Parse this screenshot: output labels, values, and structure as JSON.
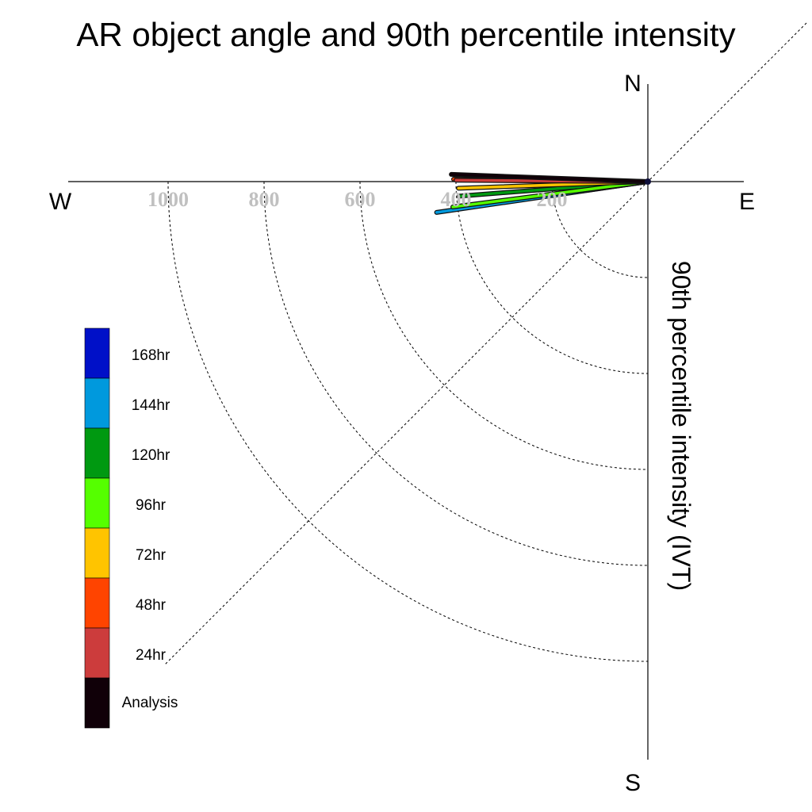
{
  "chart_data": {
    "type": "polar-vector",
    "title": "AR object angle and 90th percentile intensity",
    "ylabel": "90th percentile intensity (IVT)",
    "compass": {
      "north": "N",
      "south": "S",
      "east": "E",
      "west": "W"
    },
    "radial_ticks": [
      "200",
      "400",
      "600",
      "800",
      "1000"
    ],
    "radial_tick_values": [
      200,
      400,
      600,
      800,
      1000
    ],
    "rlim": [
      0,
      1200
    ],
    "grid": true,
    "legend_position": "left",
    "series": [
      {
        "name": "168hr",
        "color": "#0010c8",
        "magnitude": 405,
        "angle_deg": -8.1
      },
      {
        "name": "144hr",
        "color": "#0099dd",
        "magnitude": 445,
        "angle_deg": -8.3
      },
      {
        "name": "120hr",
        "color": "#009911",
        "magnitude": 395,
        "angle_deg": -4.4
      },
      {
        "name": "96hr",
        "color": "#55ff00",
        "magnitude": 410,
        "angle_deg": -7.4
      },
      {
        "name": "72hr",
        "color": "#ffc400",
        "magnitude": 395,
        "angle_deg": -2.0
      },
      {
        "name": "48hr",
        "color": "#ff4400",
        "magnitude": 405,
        "angle_deg": 0.7
      },
      {
        "name": "24hr",
        "color": "#cc3c3c",
        "magnitude": 400,
        "angle_deg": 0.4
      },
      {
        "name": "Analysis",
        "color": "#100008",
        "magnitude": 410,
        "angle_deg": 2.1
      }
    ]
  }
}
